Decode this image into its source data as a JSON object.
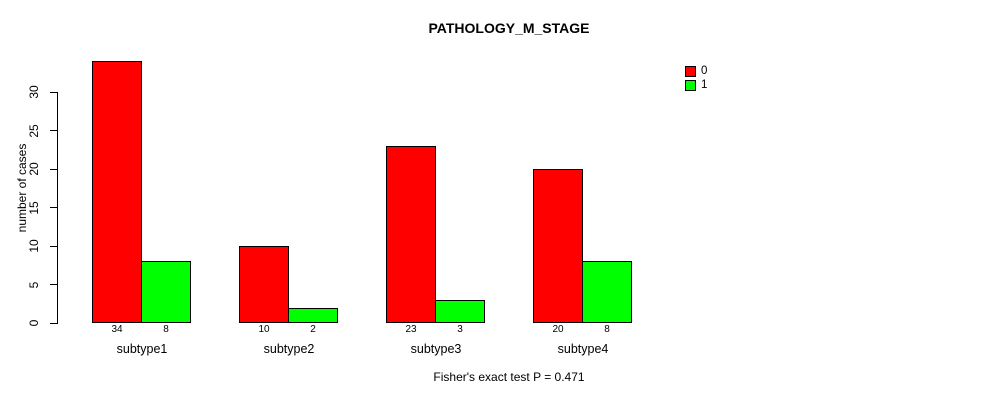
{
  "title": "PATHOLOGY_M_STAGE",
  "ylabel": "number of cases",
  "footer": "Fisher's exact test P = 0.471",
  "colors": {
    "series0": "#FF0000",
    "series1": "#00FF00",
    "axis": "#000000",
    "background": "#FFFFFF"
  },
  "legend": {
    "items": [
      {
        "label": "0",
        "color": "#FF0000"
      },
      {
        "label": "1",
        "color": "#00FF00"
      }
    ]
  },
  "chart_data": {
    "type": "bar",
    "grouped": true,
    "title": "PATHOLOGY_M_STAGE",
    "xlabel": "",
    "ylabel": "number of cases",
    "categories": [
      "subtype1",
      "subtype2",
      "subtype3",
      "subtype4"
    ],
    "series": [
      {
        "name": "0",
        "color": "#FF0000",
        "values": [
          34,
          10,
          23,
          20
        ]
      },
      {
        "name": "1",
        "color": "#00FF00",
        "values": [
          8,
          2,
          3,
          8
        ]
      }
    ],
    "bar_value_labels_shown": true,
    "yticks": [
      0,
      5,
      10,
      15,
      20,
      25,
      30
    ],
    "ylim": [
      0,
      34
    ],
    "grid": false,
    "legend_position": "right-top",
    "annotation": "Fisher's exact test P = 0.471"
  }
}
